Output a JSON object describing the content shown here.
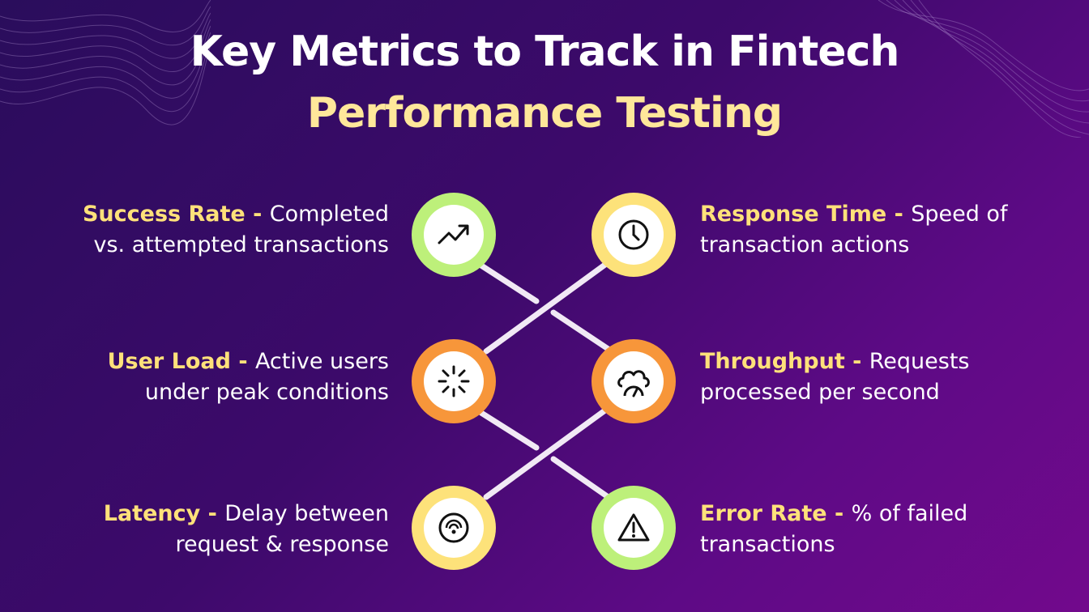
{
  "title": {
    "line1": "Key Metrics to Track in Fintech",
    "line2": "Performance Testing"
  },
  "colors": {
    "background_start": "#2a0d5c",
    "background_end": "#72098c",
    "title_highlight": "#ffe79a",
    "metric_name": "#ffe17a",
    "ring_green": "#bdf07a",
    "ring_yellow": "#fde27a",
    "ring_orange": "#f7963a"
  },
  "metrics": [
    {
      "name": "Success Rate",
      "sep": " - ",
      "text1": "Completed",
      "text2": "vs. attempted transactions",
      "icon": "trend-up-icon",
      "ring": "green"
    },
    {
      "name": "Response Time",
      "sep": " - ",
      "text1": "Speed of",
      "text2": "transaction actions",
      "icon": "clock-icon",
      "ring": "yellow"
    },
    {
      "name": "User Load",
      "sep": " - ",
      "text1": "Active users",
      "text2": "under peak conditions",
      "icon": "loading-burst-icon",
      "ring": "orange"
    },
    {
      "name": "Throughput",
      "sep": " - ",
      "text1": "Requests",
      "text2": "processed per second",
      "icon": "cloud-gauge-icon",
      "ring": "orange"
    },
    {
      "name": "Latency",
      "sep": " - ",
      "text1": "Delay between",
      "text2": "request & response",
      "icon": "signal-dial-icon",
      "ring": "yellow"
    },
    {
      "name": "Error Rate",
      "sep": " - ",
      "text1": "% of failed",
      "text2": "transactions",
      "icon": "warning-icon",
      "ring": "green"
    }
  ]
}
